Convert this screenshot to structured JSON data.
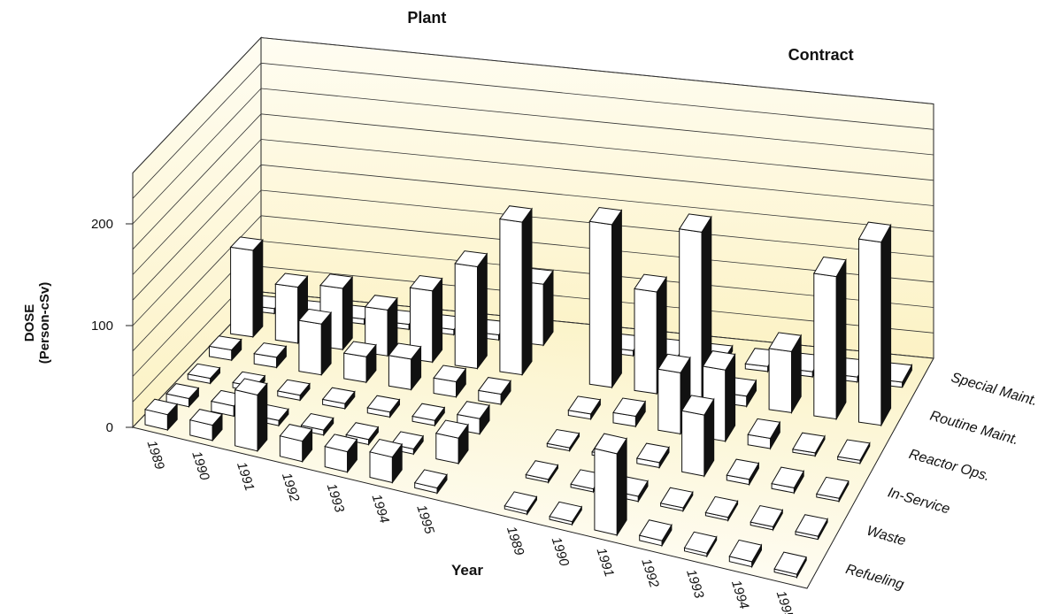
{
  "chart_data": {
    "type": "bar3d",
    "y_label": "DOSE\n(Person-cSv)",
    "x_label": "Year",
    "years": [
      "1989",
      "1990",
      "1991",
      "1992",
      "1993",
      "1994",
      "1995"
    ],
    "categories": [
      "Refueling",
      "Waste",
      "In-Service",
      "Reactor Ops.",
      "Routine Maint.",
      "Special Maint."
    ],
    "series": [
      {
        "name": "Plant",
        "values": [
          [
            15,
            15,
            55,
            20,
            20,
            25,
            5
          ],
          [
            8,
            10,
            5,
            5,
            5,
            5,
            25
          ],
          [
            5,
            5,
            5,
            5,
            5,
            5,
            15
          ],
          [
            10,
            10,
            50,
            25,
            30,
            15,
            10
          ],
          [
            85,
            55,
            60,
            45,
            70,
            100,
            150
          ],
          [
            5,
            5,
            5,
            5,
            5,
            5,
            60
          ]
        ]
      },
      {
        "name": "Contract",
        "values": [
          [
            3,
            3,
            80,
            5,
            3,
            5,
            3
          ],
          [
            3,
            3,
            5,
            3,
            3,
            3,
            3
          ],
          [
            3,
            3,
            5,
            60,
            5,
            5,
            3
          ],
          [
            5,
            10,
            60,
            70,
            10,
            3,
            3
          ],
          [
            160,
            100,
            165,
            10,
            60,
            140,
            180
          ],
          [
            5,
            5,
            5,
            5,
            5,
            5,
            5
          ]
        ]
      }
    ],
    "ylim": [
      0,
      250
    ],
    "yticks": [
      0,
      100,
      200
    ],
    "minor_yticks": [
      25,
      50,
      75,
      125,
      150,
      175,
      225,
      250
    ],
    "bar_color": "#ffffff",
    "side_color": "#111111",
    "grid": true
  }
}
